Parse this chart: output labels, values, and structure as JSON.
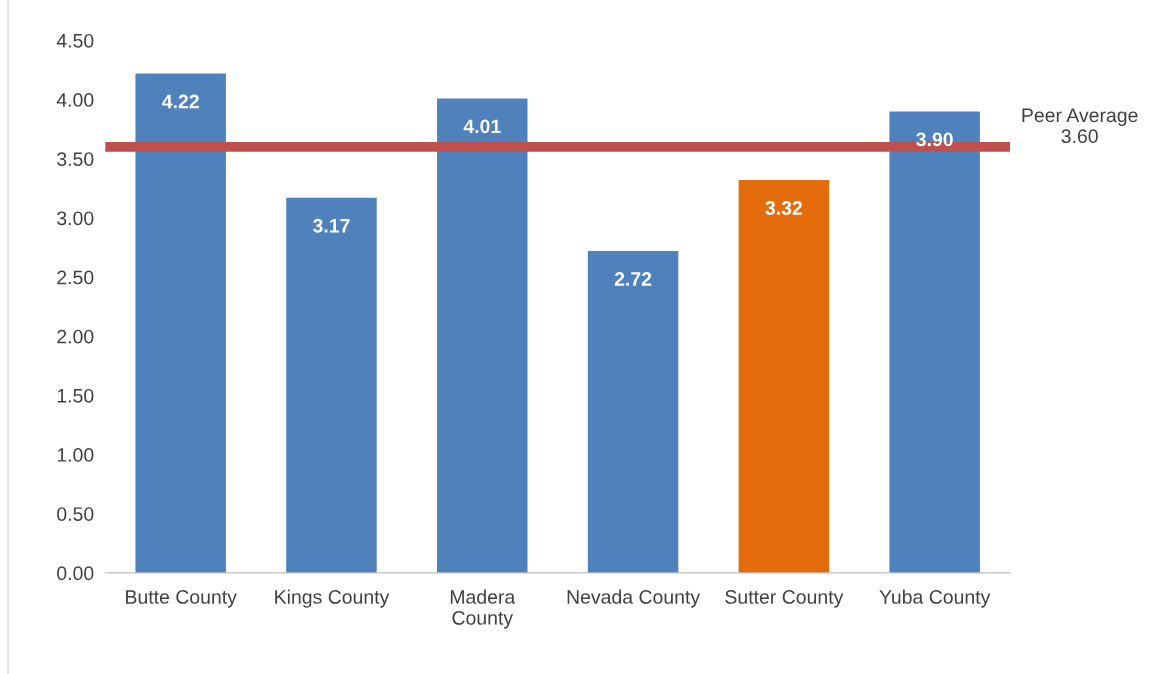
{
  "chart_data": {
    "type": "bar",
    "categories": [
      "Butte County",
      "Kings County",
      "Madera\nCounty",
      "Nevada County",
      "Sutter County",
      "Yuba County"
    ],
    "values": [
      4.22,
      3.17,
      4.01,
      2.72,
      3.32,
      3.9
    ],
    "colors": [
      "#4f81bd",
      "#4f81bd",
      "#4f81bd",
      "#4f81bd",
      "#e46c0a",
      "#4f81bd"
    ],
    "value_labels": [
      "4.22",
      "3.17",
      "4.01",
      "2.72",
      "3.32",
      "3.90"
    ],
    "ylim": [
      0,
      4.5
    ],
    "yticks": [
      {
        "value": 0,
        "label": "0.00"
      },
      {
        "value": 0.5,
        "label": "0.50"
      },
      {
        "value": 1,
        "label": "1.00"
      },
      {
        "value": 1.5,
        "label": "1.50"
      },
      {
        "value": 2,
        "label": "2.00"
      },
      {
        "value": 2.5,
        "label": "2.50"
      },
      {
        "value": 3,
        "label": "3.00"
      },
      {
        "value": 3.5,
        "label": "3.50"
      },
      {
        "value": 4,
        "label": "4.00"
      },
      {
        "value": 4.5,
        "label": "4.50"
      }
    ],
    "ref_lines": [
      {
        "axis": "y",
        "value": 3.6,
        "label": "Peer Average\n3.60",
        "color": "#c0504d"
      }
    ],
    "grid": false,
    "legend": false
  }
}
